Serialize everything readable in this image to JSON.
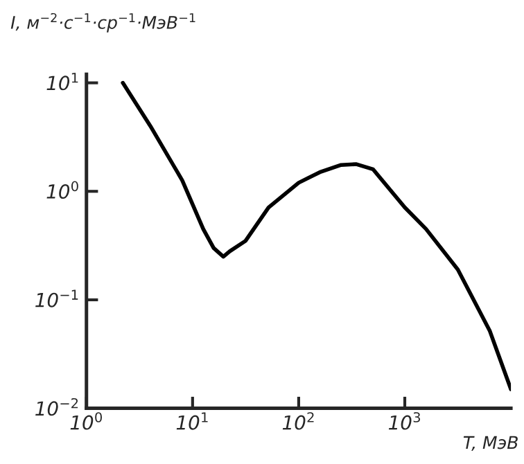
{
  "chart_data": {
    "type": "line",
    "log": "xy",
    "ylabel": "I, м$^{−2}$·с$^{−1}$·ср$^{−1}$·МэВ$^{−1}$",
    "xlabel": "T, МэВ",
    "x": [
      2.2,
      4,
      8,
      12.6,
      15.8,
      19.5,
      22.4,
      31.6,
      52,
      100,
      158,
      251,
      350,
      501,
      1000,
      1585,
      3162,
      6310,
      10000
    ],
    "series": [
      {
        "color": "#000000",
        "values": [
          10,
          4,
          1.26,
          0.45,
          0.3,
          0.25,
          0.28,
          0.35,
          0.71,
          1.2,
          1.5,
          1.75,
          1.78,
          1.6,
          0.71,
          0.45,
          0.19,
          0.052,
          0.015
        ]
      }
    ],
    "xlim": [
      1,
      10000
    ],
    "ylim": [
      0.01,
      12
    ],
    "xticks": [
      {
        "value": 1,
        "label": "10$^{0}$"
      },
      {
        "value": 10,
        "label": "10$^{1}$"
      },
      {
        "value": 100,
        "label": "10$^{2}$"
      },
      {
        "value": 1000,
        "label": "10$^{3}$"
      }
    ],
    "yticks": [
      {
        "value": 0.01,
        "label": "10$^{−2}$"
      },
      {
        "value": 0.1,
        "label": "10$^{−1}$"
      },
      {
        "value": 1,
        "label": "10$^{0}$"
      },
      {
        "value": 10,
        "label": "10$^{1}$"
      }
    ],
    "grid": false,
    "marker": "none",
    "line_style": "solid"
  }
}
